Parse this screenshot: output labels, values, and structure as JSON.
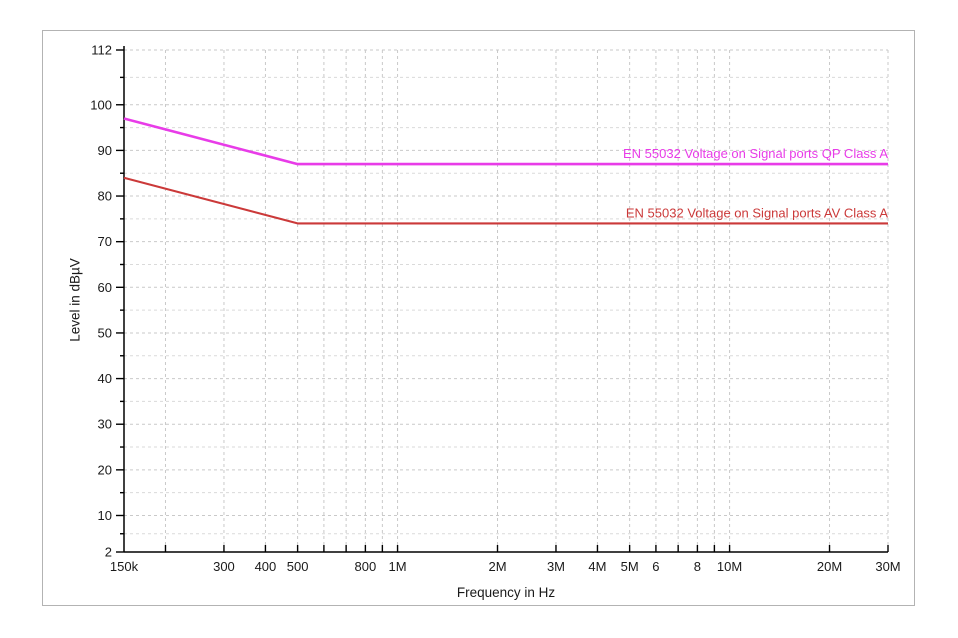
{
  "window": {
    "background_color": "#ffffff",
    "frame_border_color": "#b3b3b3"
  },
  "chart_data": {
    "type": "line",
    "title": "",
    "xlabel": "Frequency in Hz",
    "ylabel": "Level in dBµV",
    "x_scale": "log",
    "xlim_hz": [
      150000,
      30000000
    ],
    "ylim": [
      2,
      112
    ],
    "grid": "dashed",
    "grid_color": "#c9c9c9",
    "grid_minor_color": "#dadada",
    "axis_color": "#000000",
    "y_major_ticks": [
      {
        "value": 2,
        "label": "2"
      },
      {
        "value": 10,
        "label": "10"
      },
      {
        "value": 20,
        "label": "20"
      },
      {
        "value": 30,
        "label": "30"
      },
      {
        "value": 40,
        "label": "40"
      },
      {
        "value": 50,
        "label": "50"
      },
      {
        "value": 60,
        "label": "60"
      },
      {
        "value": 70,
        "label": "70"
      },
      {
        "value": 80,
        "label": "80"
      },
      {
        "value": 90,
        "label": "90"
      },
      {
        "value": 100,
        "label": "100"
      },
      {
        "value": 112,
        "label": "112"
      }
    ],
    "y_minor_ticks": [
      6,
      15,
      25,
      35,
      45,
      55,
      65,
      75,
      85,
      95,
      106
    ],
    "x_ticks": [
      {
        "hz": 150000,
        "label": "150k"
      },
      {
        "hz": 200000,
        "label": ""
      },
      {
        "hz": 300000,
        "label": "300"
      },
      {
        "hz": 400000,
        "label": "400"
      },
      {
        "hz": 500000,
        "label": "500"
      },
      {
        "hz": 600000,
        "label": ""
      },
      {
        "hz": 700000,
        "label": ""
      },
      {
        "hz": 800000,
        "label": "800"
      },
      {
        "hz": 900000,
        "label": ""
      },
      {
        "hz": 1000000,
        "label": "1M"
      },
      {
        "hz": 2000000,
        "label": "2M"
      },
      {
        "hz": 3000000,
        "label": "3M"
      },
      {
        "hz": 4000000,
        "label": "4M"
      },
      {
        "hz": 5000000,
        "label": "5M"
      },
      {
        "hz": 6000000,
        "label": "6"
      },
      {
        "hz": 7000000,
        "label": ""
      },
      {
        "hz": 8000000,
        "label": "8"
      },
      {
        "hz": 9000000,
        "label": ""
      },
      {
        "hz": 10000000,
        "label": "10M"
      },
      {
        "hz": 20000000,
        "label": "20M"
      },
      {
        "hz": 30000000,
        "label": "30M"
      }
    ],
    "series": [
      {
        "name": "EN 55032 Voltage on Signal ports QP Class A",
        "color": "#e83ce8",
        "line_width": 2.6,
        "points_hz_dbuv": [
          [
            150000,
            97
          ],
          [
            500000,
            87
          ],
          [
            30000000,
            87
          ]
        ]
      },
      {
        "name": "EN 55032 Voltage on Signal ports AV Class A",
        "color": "#cb3939",
        "line_width": 2.1,
        "points_hz_dbuv": [
          [
            150000,
            84
          ],
          [
            500000,
            74
          ],
          [
            30000000,
            74
          ]
        ]
      }
    ],
    "legend_position": "labels-above-lines-right"
  }
}
